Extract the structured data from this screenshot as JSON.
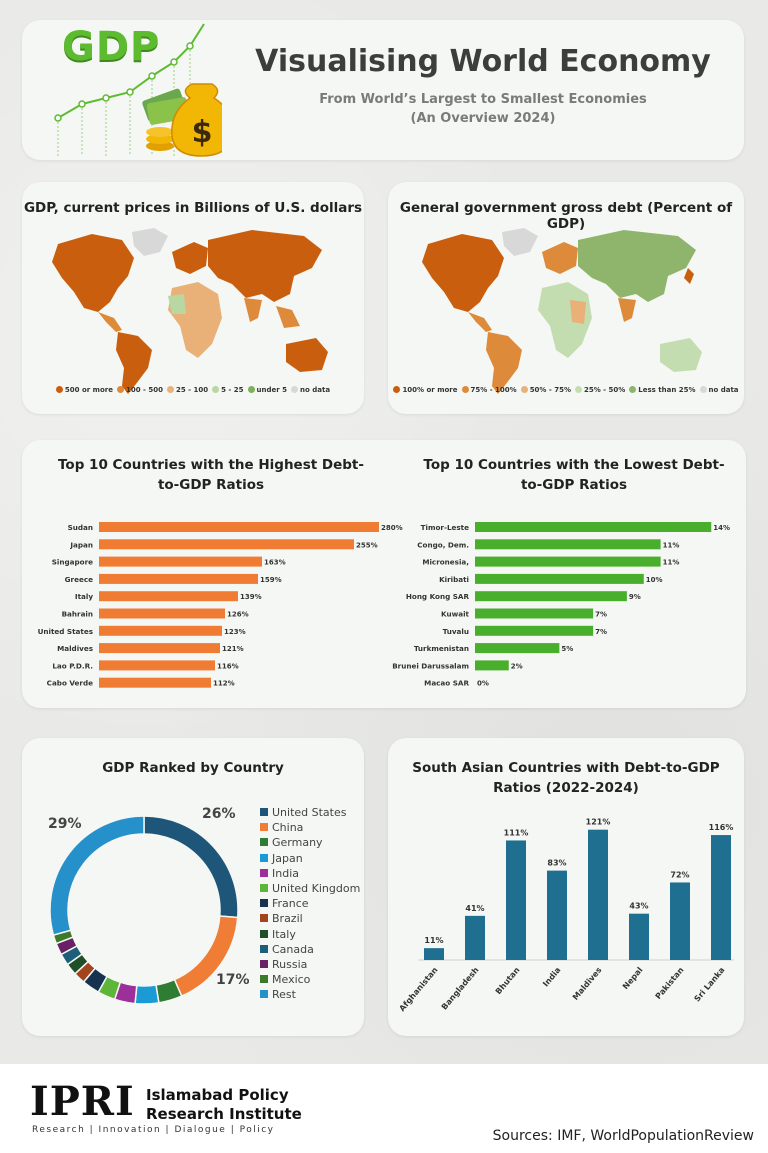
{
  "header": {
    "logo_text": "GDP",
    "title": "Visualising World Economy",
    "subtitle_line1": "From World’s Largest to Smallest Economies",
    "subtitle_line2": "(An Overview 2024)"
  },
  "colors": {
    "orange": "#d36a11",
    "bar_orange": "#f07b32",
    "bar_green": "#48ae2b",
    "teal": "#1f6f91",
    "green_gdp": "#5dbb2f"
  },
  "gdp_map": {
    "title": "GDP, current prices in Billions of U.S. dollars",
    "legend": [
      {
        "label": "500 or more",
        "color": "#c95f0e"
      },
      {
        "label": "100 - 500",
        "color": "#dd8a3a"
      },
      {
        "label": "25 - 100",
        "color": "#e9b078"
      },
      {
        "label": "5 - 25",
        "color": "#b9d7a0"
      },
      {
        "label": "under 5",
        "color": "#7fae5c"
      },
      {
        "label": "no data",
        "color": "#d8d8d8"
      }
    ]
  },
  "debt_map": {
    "title": "General government gross debt (Percent of GDP)",
    "legend": [
      {
        "label": "100% or more",
        "color": "#c95f0e"
      },
      {
        "label": "75% - 100%",
        "color": "#dd8a3a"
      },
      {
        "label": "50% - 75%",
        "color": "#e9b078"
      },
      {
        "label": "25% - 50%",
        "color": "#c4ddb0"
      },
      {
        "label": "Less than 25%",
        "color": "#8fb56d"
      },
      {
        "label": "no data",
        "color": "#d8d8d8"
      }
    ]
  },
  "chart_data": [
    {
      "type": "bar",
      "orientation": "horizontal",
      "title": "Top 10 Countries with the Highest Debt-to-GDP Ratios",
      "categories": [
        "Sudan",
        "Japan",
        "Singapore",
        "Greece",
        "Italy",
        "Bahrain",
        "United States",
        "Maldives",
        "Lao P.D.R.",
        "Cabo Verde"
      ],
      "values": [
        280,
        255,
        163,
        159,
        139,
        126,
        123,
        121,
        116,
        112
      ],
      "data_labels": [
        "280%",
        "255%",
        "163%",
        "159%",
        "139%",
        "126%",
        "123%",
        "121%",
        "116%",
        "112%"
      ],
      "xlim": [
        0,
        300
      ]
    },
    {
      "type": "bar",
      "orientation": "horizontal",
      "title": "Top 10 Countries with the Lowest Debt-to-GDP Ratios",
      "categories": [
        "Timor-Leste",
        "Congo, Dem.",
        "Micronesia,",
        "Kiribati",
        "Hong Kong SAR",
        "Kuwait",
        "Tuvalu",
        "Turkmenistan",
        "Brunei Darussalam",
        "Macao SAR"
      ],
      "values": [
        14,
        11,
        11,
        10,
        9,
        7,
        7,
        5,
        2,
        0
      ],
      "data_labels": [
        "14%",
        "11%",
        "11%",
        "10%",
        "9%",
        "7%",
        "7%",
        "5%",
        "2%",
        "0%"
      ],
      "xlim": [
        0,
        16
      ]
    },
    {
      "type": "pie",
      "donut": true,
      "title": "GDP Ranked by Country",
      "categories": [
        "United States",
        "China",
        "Germany",
        "Japan",
        "India",
        "United Kingdom",
        "France",
        "Brazil",
        "Italy",
        "Canada",
        "Russia",
        "Mexico",
        "Rest"
      ],
      "values": [
        26,
        17,
        4,
        4,
        3.5,
        3,
        3,
        2,
        2,
        2,
        2,
        1.5,
        29
      ],
      "colors": [
        "#1d5679",
        "#ef7d35",
        "#2f7d32",
        "#1c9ad6",
        "#9c2f9a",
        "#5db63a",
        "#16324f",
        "#a2451c",
        "#1f4f28",
        "#1d5f78",
        "#6a2064",
        "#3b7a2a",
        "#2590c9"
      ],
      "data_labels": {
        "United States": "26%",
        "China": "17%",
        "Rest": "29%"
      },
      "legend_position": "right"
    },
    {
      "type": "bar",
      "title": "South Asian Countries with Debt-to-GDP Ratios (2022-2024)",
      "categories": [
        "Afghanistan",
        "Bangladesh",
        "Bhutan",
        "India",
        "Maldives",
        "Nepal",
        "Pakistan",
        "Sri Lanka"
      ],
      "values": [
        11,
        41,
        111,
        83,
        121,
        43,
        72,
        116
      ],
      "data_labels": [
        "11%",
        "41%",
        "111%",
        "83%",
        "121%",
        "43%",
        "72%",
        "116%"
      ],
      "ylim": [
        0,
        130
      ]
    }
  ],
  "footer": {
    "mark": "IPRI",
    "name_line1": "Islamabad Policy",
    "name_line2": "Research Institute",
    "tagline": "Research | Innovation | Dialogue | Policy",
    "sources": "Sources: IMF, WorldPopulationReview"
  }
}
